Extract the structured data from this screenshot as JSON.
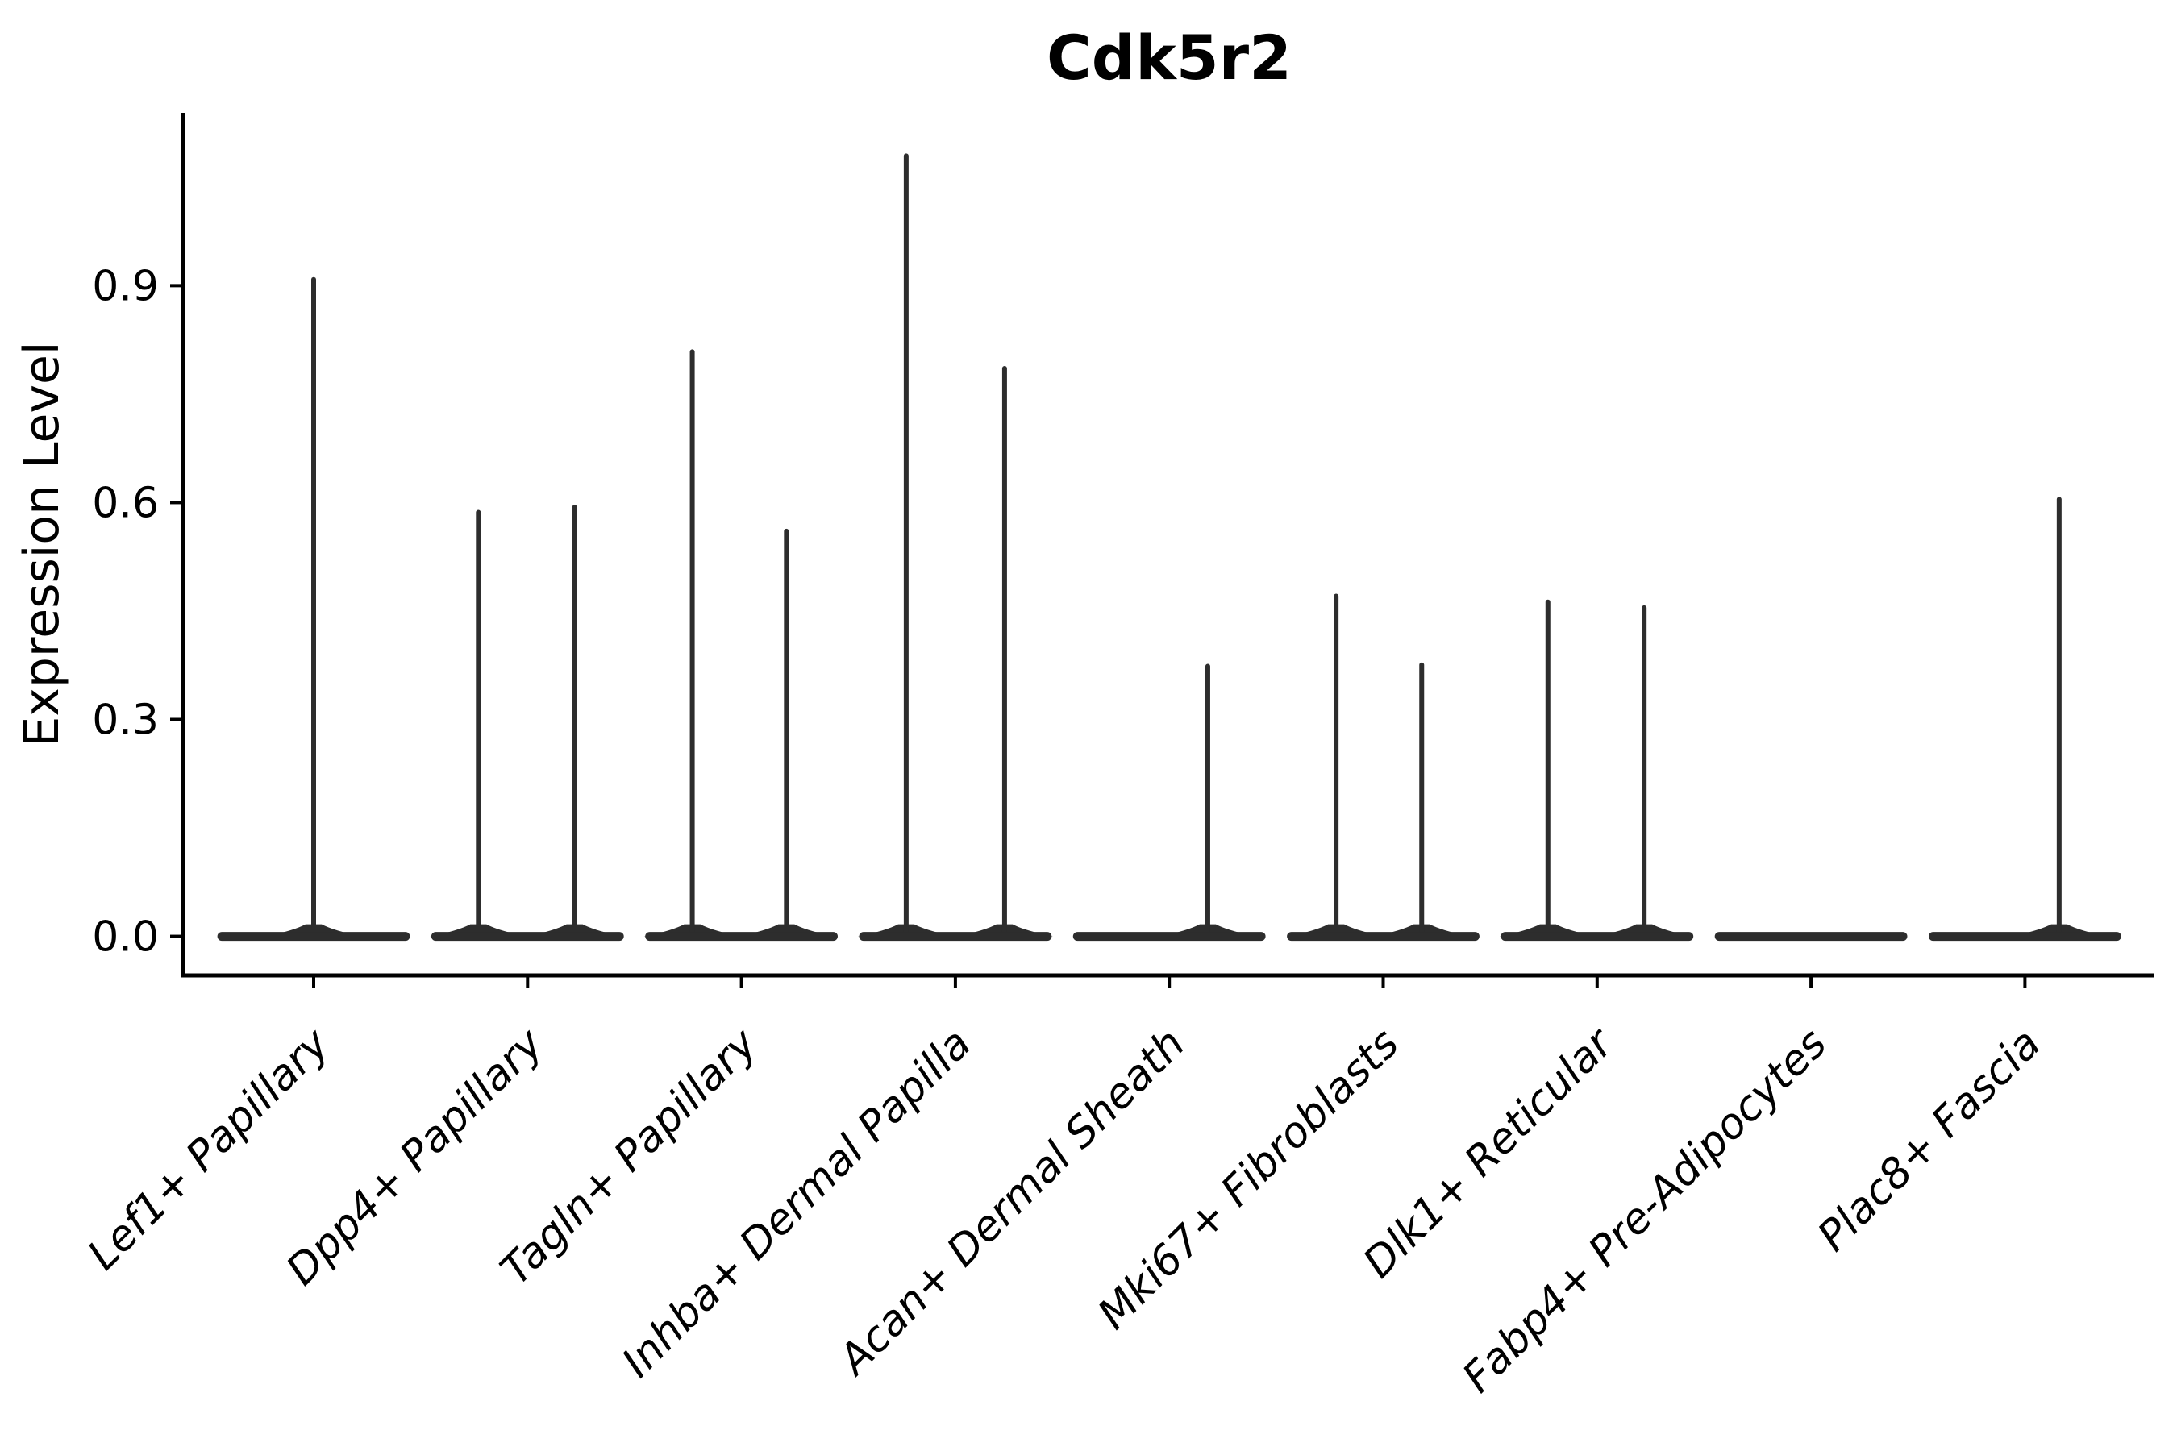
{
  "figure": {
    "title": "Cdk5r2",
    "ylabel": "Expression Level"
  },
  "chart_data": {
    "type": "violin",
    "title": "Cdk5r2",
    "xlabel": "",
    "ylabel": "Expression Level",
    "grid": false,
    "legend": "none",
    "ylim": [
      -0.054,
      1.139
    ],
    "ytick_values": [
      0.0,
      0.3,
      0.6,
      0.9
    ],
    "ytick_labels": [
      "0.0",
      "0.3",
      "0.6",
      "0.9"
    ],
    "categories": [
      "Lef1+ Papillary",
      "Dpp4+ Papillary",
      "Tagln+ Papillary",
      "Inhba+ Dermal Papilla",
      "Acan+ Dermal Sheath",
      "Mki67+ Fibroblasts",
      "Dlk1+ Reticular",
      "Fabp4+ Pre-Adipocytes",
      "Plac8+ Fascia"
    ],
    "violin_color": "#2d2d2d",
    "axis_color": "#000000",
    "body_halfwidth_units": 0.45,
    "violins": [
      {
        "category": "Lef1+ Papillary",
        "needles": [
          {
            "offset": 0.0,
            "max": 0.913
          }
        ]
      },
      {
        "category": "Dpp4+ Papillary",
        "needles": [
          {
            "offset": -0.23,
            "max": 0.591
          },
          {
            "offset": 0.22,
            "max": 0.598
          }
        ]
      },
      {
        "category": "Tagln+ Papillary",
        "needles": [
          {
            "offset": -0.23,
            "max": 0.813
          },
          {
            "offset": 0.21,
            "max": 0.565
          }
        ]
      },
      {
        "category": "Inhba+ Dermal Papilla",
        "needles": [
          {
            "offset": -0.23,
            "max": 1.084
          },
          {
            "offset": 0.23,
            "max": 0.79
          }
        ]
      },
      {
        "category": "Acan+ Dermal Sheath",
        "needles": [
          {
            "offset": 0.18,
            "max": 0.378
          }
        ]
      },
      {
        "category": "Mki67+ Fibroblasts",
        "needles": [
          {
            "offset": -0.22,
            "max": 0.475
          },
          {
            "offset": 0.18,
            "max": 0.38
          }
        ]
      },
      {
        "category": "Dlk1+ Reticular",
        "needles": [
          {
            "offset": -0.23,
            "max": 0.467
          },
          {
            "offset": 0.22,
            "max": 0.459
          }
        ]
      },
      {
        "category": "Fabp4+ Pre-Adipocytes",
        "needles": []
      },
      {
        "category": "Plac8+ Fascia",
        "needles": [
          {
            "offset": 0.16,
            "max": 0.609
          }
        ]
      }
    ]
  }
}
